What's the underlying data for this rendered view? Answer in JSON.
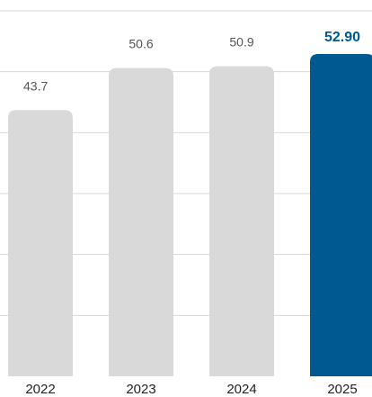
{
  "chart_data": {
    "type": "bar",
    "categories": [
      "2022",
      "2023",
      "2024",
      "2025"
    ],
    "values": [
      43.7,
      50.6,
      50.9,
      52.9
    ],
    "value_labels": [
      "43.7",
      "50.6",
      "50.9",
      "52.90"
    ],
    "highlight_index": 3,
    "ylim": [
      0,
      60
    ],
    "grid": true,
    "colors": {
      "bar": "#d9d9d9",
      "highlight": "#005a91",
      "grid": "#d6d6d6",
      "label": "#555555",
      "highlight_label": "#005a91",
      "tick_label": "#222222"
    }
  }
}
